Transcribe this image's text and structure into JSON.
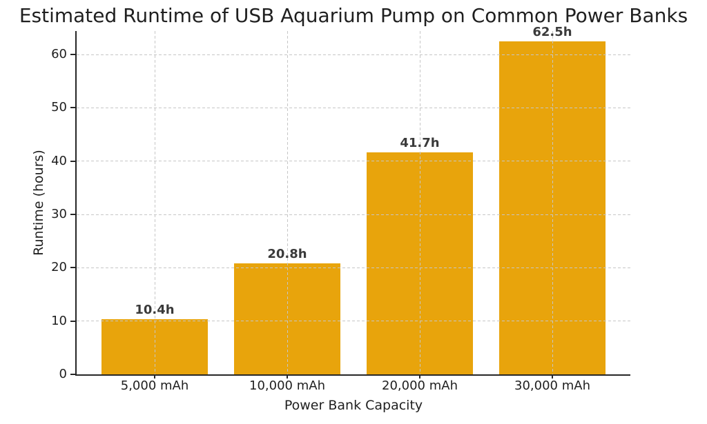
{
  "chart_data": {
    "type": "bar",
    "title": "Estimated Runtime of USB Aquarium Pump on Common Power Banks",
    "xlabel": "Power Bank Capacity",
    "ylabel": "Runtime (hours)",
    "categories": [
      "5,000 mAh",
      "10,000 mAh",
      "20,000 mAh",
      "30,000 mAh"
    ],
    "values": [
      10.4,
      20.8,
      41.7,
      62.5
    ],
    "bar_labels": [
      "10.4h",
      "20.8h",
      "41.7h",
      "62.5h"
    ],
    "yticks": [
      0,
      10,
      20,
      30,
      40,
      50,
      60
    ],
    "ylim": [
      0,
      64.4
    ],
    "grid": {
      "style": "dashed",
      "axes": "both",
      "color": "#c6c6c6",
      "above_bars": true
    },
    "legend": null,
    "colors": {
      "bar": "#E8A40C",
      "spine": "#262626",
      "text": "#1f1f1f",
      "bar_label_text": "#3a3a3a",
      "background": "#ffffff"
    }
  }
}
